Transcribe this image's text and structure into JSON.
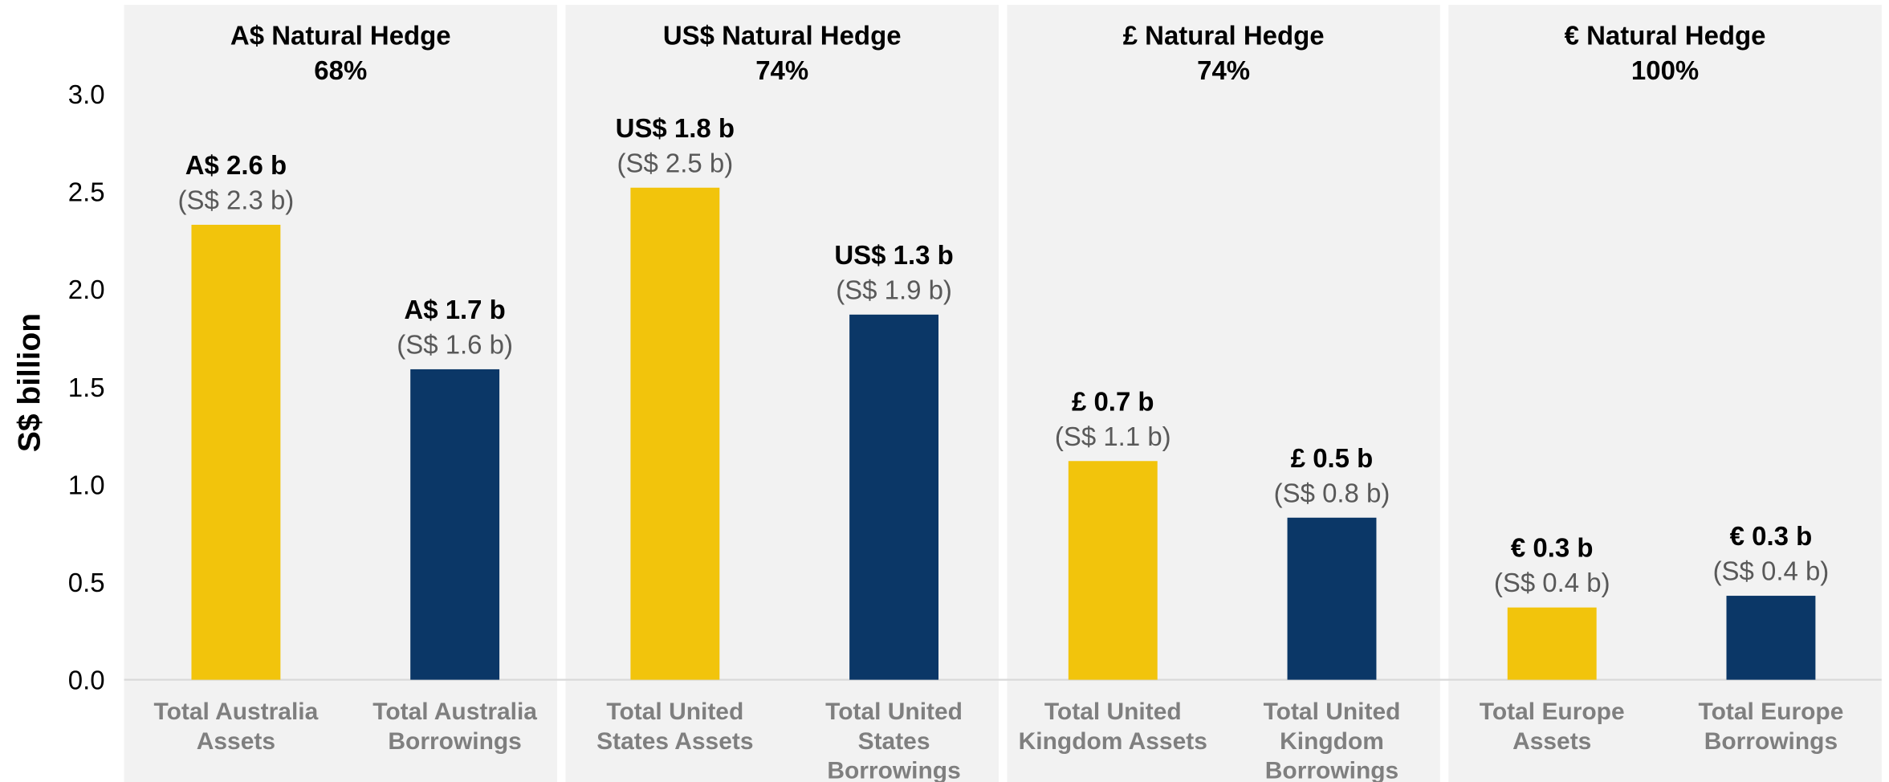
{
  "chart_data": {
    "type": "bar",
    "y_label": "S$ billion",
    "panels": [
      {
        "title": "A$ Natural Hedge",
        "hedge": "68%"
      },
      {
        "title": "US$ Natural Hedge",
        "hedge": "74%"
      },
      {
        "title": "£ Natural Hedge",
        "hedge": "74%"
      },
      {
        "title": "€ Natural Hedge",
        "hedge": "100%"
      }
    ],
    "categories": [
      "Total Australia\nAssets",
      "Total Australia\nBorrowings",
      "Total United\nStates Assets",
      "Total United\nStates\nBorrowings",
      "Total United\nKingdom Assets",
      "Total United\nKingdom\nBorrowings",
      "Total Europe\nAssets",
      "Total Europe\nBorrowings"
    ],
    "values": [
      2.33,
      1.59,
      2.52,
      1.87,
      1.12,
      0.83,
      0.37,
      0.43
    ],
    "value_labels": [
      "(S$ 2.3 b)",
      "(S$ 1.6 b)",
      "(S$ 2.5 b)",
      "(S$ 1.9 b)",
      "(S$ 1.1 b)",
      "(S$ 0.8 b)",
      "(S$ 0.4 b)",
      "(S$ 0.4 b)"
    ],
    "local_labels": [
      "A$ 2.6 b",
      "A$ 1.7 b",
      "US$ 1.8 b",
      "US$ 1.3 b",
      "£ 0.7 b",
      "£ 0.5 b",
      "€ 0.3 b",
      "€ 0.3 b"
    ],
    "colors": [
      "#f2c40c",
      "#0b3767",
      "#f2c40c",
      "#0b3767",
      "#f2c40c",
      "#0b3767",
      "#f2c40c",
      "#0b3767"
    ],
    "ylim": [
      0,
      3.5
    ],
    "yticks": [
      {
        "value": 0,
        "label": "0.0"
      },
      0.5,
      {
        "value": 1,
        "label": "1.0"
      },
      1.5,
      {
        "value": 2,
        "label": "2.0"
      },
      2.5,
      {
        "value": 3,
        "label": "3.0"
      }
    ],
    "grid": false
  }
}
